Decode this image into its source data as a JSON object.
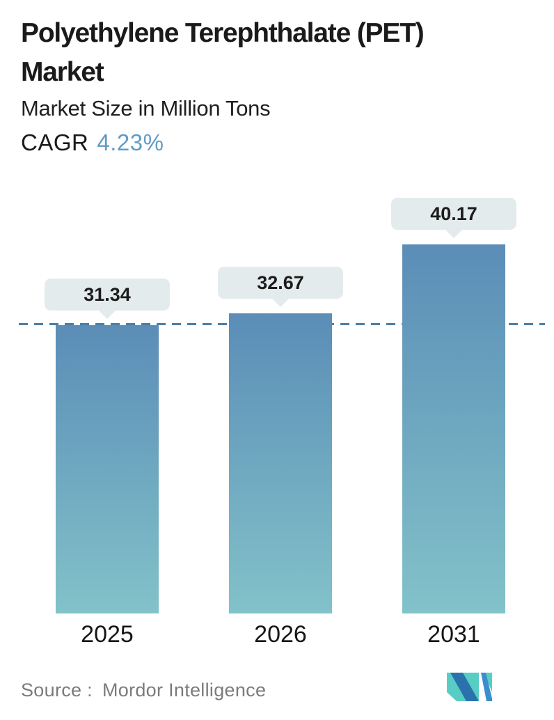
{
  "header": {
    "title": "Polyethylene Terephthalate (PET) Market",
    "subtitle": "Market Size in Million Tons",
    "cagr_label": "CAGR",
    "cagr_value": "4.23%"
  },
  "chart_data": {
    "type": "bar",
    "title": "Polyethylene Terephthalate (PET) Market",
    "subtitle": "Market Size in Million Tons",
    "cagr_percent": 4.23,
    "categories": [
      "2025",
      "2026",
      "2031"
    ],
    "values": [
      31.34,
      32.67,
      40.17
    ],
    "value_labels": [
      "31.34",
      "32.67",
      "40.17"
    ],
    "xlabel": "",
    "ylabel": "Market Size in Million Tons",
    "ylim": [
      0,
      45
    ],
    "grid": false,
    "legend": "none",
    "reference_line": {
      "style": "dashed",
      "value": 31.34
    },
    "colors": {
      "bar_gradient_top": "#5b8db7",
      "bar_gradient_bottom": "#82c2c9",
      "label_bubble": "#e4ebec",
      "dashed_line": "#4a7da7",
      "cagr_accent": "#5f9cc5"
    }
  },
  "footer": {
    "source_label": "Source :",
    "source_value": "Mordor Intelligence"
  }
}
